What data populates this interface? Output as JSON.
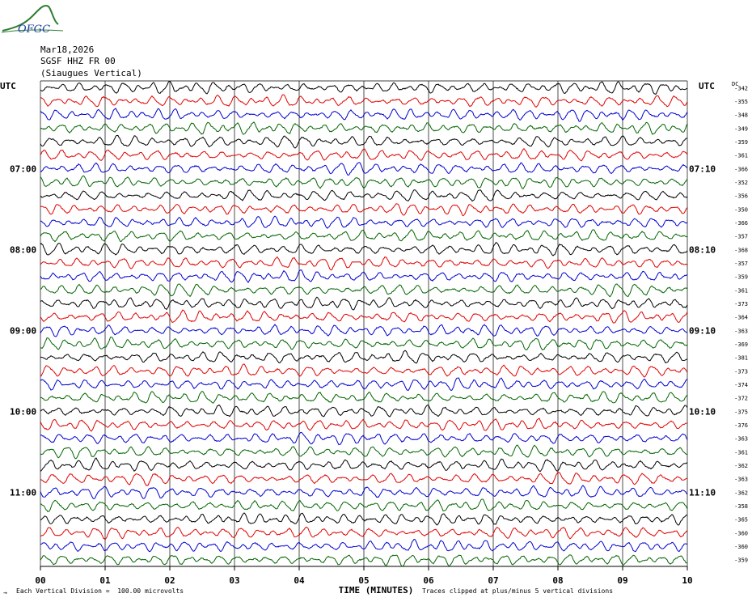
{
  "logo": {
    "text": "OFGC",
    "icon": "ofgc-mountain-logo",
    "color": "#2e7d32",
    "text_color": "#1a3fa0"
  },
  "header": {
    "date": "Mar18,2026",
    "station": "SGSF HHZ FR 00",
    "location": "(Siaugues Vertical)"
  },
  "footer": {
    "scale_prefix": "→",
    "scale_note": "Each Vertical Division =  100.00 microvolts",
    "clip_note": "Traces clipped at plus/minus 5 vertical divisions"
  },
  "chart_data": {
    "type": "line",
    "xlabel": "TIME (MINUTES)",
    "x_ticks": [
      "00",
      "01",
      "02",
      "03",
      "04",
      "05",
      "06",
      "07",
      "08",
      "09",
      "10"
    ],
    "xlim": [
      0,
      10
    ],
    "left_axis_label": "UTC",
    "right_axis_label": "UTC",
    "dc_label": "DC",
    "left_time_labels": [
      {
        "row": 6,
        "text": "07:00"
      },
      {
        "row": 12,
        "text": "08:00"
      },
      {
        "row": 18,
        "text": "09:00"
      },
      {
        "row": 24,
        "text": "10:00"
      },
      {
        "row": 30,
        "text": "11:00"
      }
    ],
    "right_time_labels": [
      {
        "row": 6,
        "text": "07:10"
      },
      {
        "row": 12,
        "text": "08:10"
      },
      {
        "row": 18,
        "text": "09:10"
      },
      {
        "row": 24,
        "text": "10:10"
      },
      {
        "row": 30,
        "text": "11:10"
      }
    ],
    "dc_offsets": [
      "-342",
      "-355",
      "-348",
      "-349",
      "-359",
      "-361",
      "-366",
      "-352",
      "-356",
      "-350",
      "-366",
      "-357",
      "-368",
      "-357",
      "-359",
      "-361",
      "-373",
      "-364",
      "-363",
      "-369",
      "-381",
      "-373",
      "-374",
      "-372",
      "-375",
      "-376",
      "-363",
      "-361",
      "-362",
      "-363",
      "-362",
      "-358",
      "-365",
      "-360",
      "-360",
      "-359"
    ],
    "trace_colors": [
      "#000000",
      "#e00000",
      "#0000d0",
      "#006400"
    ],
    "grid": true,
    "clip_divisions": 5
  }
}
